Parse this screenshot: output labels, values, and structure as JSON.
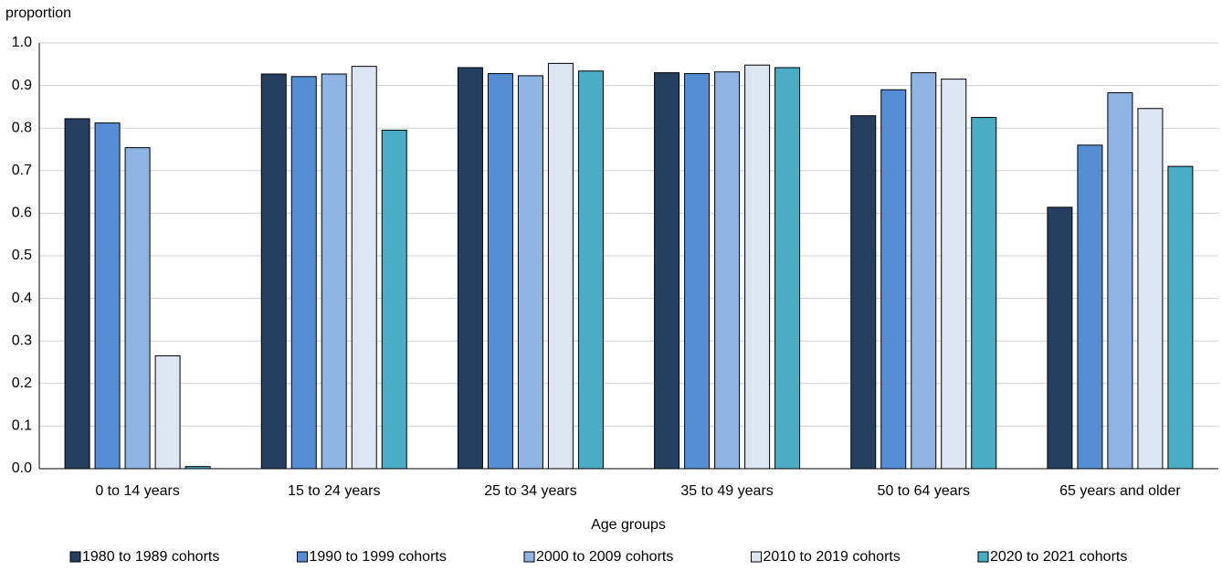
{
  "chart_data": {
    "type": "bar",
    "y_axis_label": "proportion",
    "x_axis_label": "Age groups",
    "categories": [
      "0 to 14 years",
      "15 to 24 years",
      "25 to 34 years",
      "35 to 49 years",
      "50 to 64 years",
      "65 years and older"
    ],
    "series": [
      {
        "name": "1980 to 1989 cohorts",
        "color": "#243f60",
        "values": [
          0.822,
          0.927,
          0.942,
          0.93,
          0.829,
          0.614
        ]
      },
      {
        "name": "1990 to 1999 cohorts",
        "color": "#558ed5",
        "values": [
          0.812,
          0.921,
          0.928,
          0.928,
          0.89,
          0.76
        ]
      },
      {
        "name": "2000 to 2009 cohorts",
        "color": "#8eb4e3",
        "values": [
          0.754,
          0.927,
          0.923,
          0.932,
          0.93,
          0.883
        ]
      },
      {
        "name": "2010 to 2019 cohorts",
        "color": "#dce6f2",
        "values": [
          0.265,
          0.945,
          0.952,
          0.948,
          0.915,
          0.846
        ]
      },
      {
        "name": "2020 to 2021 cohorts",
        "color": "#4bacc6",
        "values": [
          0.005,
          0.795,
          0.934,
          0.942,
          0.825,
          0.71
        ]
      }
    ],
    "ylim": [
      0,
      1
    ],
    "yticks": [
      {
        "value": 0,
        "label": "0.0"
      },
      0.1,
      0.2,
      0.3,
      0.4,
      0.5,
      0.6,
      0.7,
      0.8,
      0.9,
      {
        "value": 1,
        "label": "1.0"
      }
    ],
    "grid": true,
    "legend": "bottom"
  }
}
